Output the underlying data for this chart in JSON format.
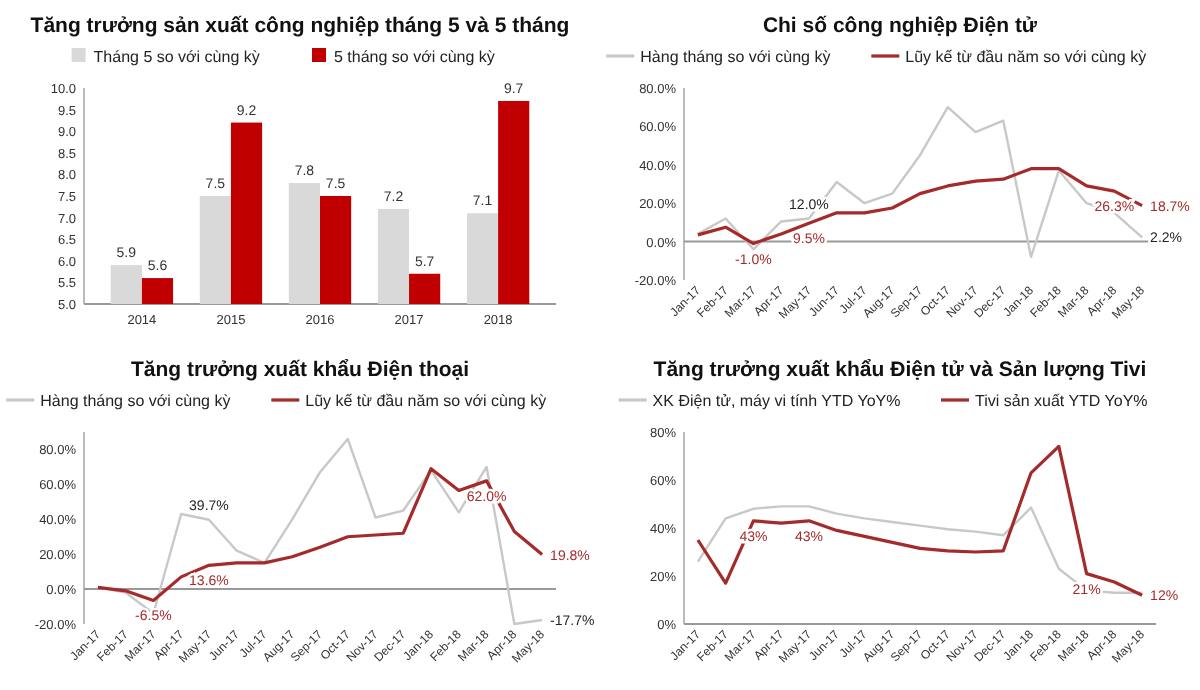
{
  "chart_data": [
    {
      "type": "bar",
      "title": "Tăng trưởng sản xuất công nghiệp tháng 5 và 5 tháng",
      "categories": [
        "2014",
        "2015",
        "2016",
        "2017",
        "2018"
      ],
      "series": [
        {
          "name": "Tháng 5 so với cùng kỳ",
          "color": "#d9d9d9",
          "values": [
            5.9,
            7.5,
            7.8,
            7.2,
            7.1
          ]
        },
        {
          "name": "5 tháng so với cùng kỳ",
          "color": "#c00000",
          "values": [
            5.6,
            9.2,
            7.5,
            5.7,
            9.7
          ]
        }
      ],
      "ylim": [
        5,
        10
      ],
      "yticks": [
        {
          "value": 5,
          "label": "5.0"
        },
        5.5,
        {
          "value": 6,
          "label": "6.0"
        },
        6.5,
        {
          "value": 7,
          "label": "7.0"
        },
        7.5,
        {
          "value": 8,
          "label": "8.0"
        },
        8.5,
        {
          "value": 9,
          "label": "9.0"
        },
        9.5,
        {
          "value": 10,
          "label": "10.0"
        }
      ],
      "data_labels": true,
      "legend": "top"
    },
    {
      "type": "line",
      "title": "Chi số công nghiệp Điện tử",
      "categories": [
        "Jan-17",
        "Feb-17",
        "Mar-17",
        "Apr-17",
        "May-17",
        "Jun-17",
        "Jul-17",
        "Aug-17",
        "Sep-17",
        "Oct-17",
        "Nov-17",
        "Dec-17",
        "Jan-18",
        "Feb-18",
        "Mar-18",
        "Apr-18",
        "May-18"
      ],
      "series": [
        {
          "name": "Hàng tháng so với cùng kỳ",
          "color": "#c8c8c8",
          "values": [
            4,
            12,
            -4,
            10.5,
            12.0,
            31,
            20,
            25,
            45,
            70,
            57,
            63,
            -8,
            37,
            20,
            15,
            2.2
          ],
          "value_labels": [
            null,
            null,
            null,
            null,
            "12.0%",
            null,
            null,
            null,
            null,
            null,
            null,
            null,
            null,
            null,
            null,
            null,
            "2.2%"
          ]
        },
        {
          "name": "Lũy kế từ đầu năm so với cùng kỳ",
          "color": "#a52a2a",
          "values": [
            3.5,
            7.5,
            -1.0,
            4,
            9.5,
            15,
            15,
            17.5,
            25,
            29,
            31.5,
            32.5,
            38,
            38,
            29,
            26.3,
            18.7
          ],
          "value_labels": [
            null,
            null,
            "-1.0%",
            null,
            "9.5%",
            null,
            null,
            null,
            null,
            null,
            null,
            null,
            null,
            null,
            null,
            "26.3%",
            "18.7%"
          ]
        }
      ],
      "ylim": [
        -20,
        80
      ],
      "yticks": [
        {
          "value": -20,
          "label": "-20.0%"
        },
        {
          "value": 0,
          "label": "0.0%"
        },
        {
          "value": 20,
          "label": "20.0%"
        },
        {
          "value": 40,
          "label": "40.0%"
        },
        {
          "value": 60,
          "label": "60.0%"
        },
        {
          "value": 80,
          "label": "80.0%"
        }
      ],
      "legend": "top"
    },
    {
      "type": "line",
      "title": "Tăng trưởng xuất khẩu Điện thoại",
      "categories": [
        "Jan-17",
        "Feb-17",
        "Mar-17",
        "Apr-17",
        "May-17",
        "Jun-17",
        "Jul-17",
        "Aug-17",
        "Sep-17",
        "Oct-17",
        "Nov-17",
        "Dec-17",
        "Jan-18",
        "Feb-18",
        "Mar-18",
        "Apr-18",
        "May-18"
      ],
      "series": [
        {
          "name": "Hàng tháng so với cùng kỳ",
          "color": "#c8c8c8",
          "values": [
            1,
            -2,
            -14,
            43,
            39.7,
            22,
            15,
            40,
            67,
            86,
            41,
            45,
            68,
            44,
            70,
            -20,
            -17.7
          ],
          "value_labels": [
            null,
            null,
            null,
            null,
            "39.7%",
            null,
            null,
            null,
            null,
            null,
            null,
            null,
            null,
            null,
            null,
            null,
            "-17.7%"
          ]
        },
        {
          "name": "Lũy kế từ đầu năm so với cùng kỳ",
          "color": "#a52a2a",
          "values": [
            1,
            -1,
            -6.5,
            7,
            13.6,
            15,
            15,
            18.5,
            24,
            30,
            31,
            32,
            69,
            56.5,
            62.0,
            33,
            19.8
          ],
          "value_labels": [
            null,
            null,
            "-6.5%",
            null,
            "13.6%",
            null,
            null,
            null,
            null,
            null,
            null,
            null,
            null,
            null,
            "62.0%",
            null,
            "19.8%"
          ]
        }
      ],
      "ylim": [
        -20,
        90
      ],
      "yticks": [
        {
          "value": -20,
          "label": "-20.0%"
        },
        {
          "value": 0,
          "label": "0.0%"
        },
        {
          "value": 20,
          "label": "20.0%"
        },
        {
          "value": 40,
          "label": "40.0%"
        },
        {
          "value": 60,
          "label": "60.0%"
        },
        {
          "value": 80,
          "label": "80.0%"
        }
      ],
      "legend": "top"
    },
    {
      "type": "line",
      "title": "Tăng trưởng xuất khẩu Điện tử và Sản lượng Tivi",
      "categories": [
        "Jan-17",
        "Feb-17",
        "Mar-17",
        "Apr-17",
        "May-17",
        "Jun-17",
        "Jul-17",
        "Aug-17",
        "Sep-17",
        "Oct-17",
        "Nov-17",
        "Dec-17",
        "Jan-18",
        "Feb-18",
        "Mar-18",
        "Apr-18",
        "May-18"
      ],
      "series": [
        {
          "name": "XK Điện tử, máy vi tính YTD YoY%",
          "color": "#c8c8c8",
          "values": [
            26,
            44,
            48,
            49,
            49,
            46,
            44,
            42.5,
            41,
            39.5,
            38.5,
            37,
            48.5,
            23,
            14,
            13,
            13
          ]
        },
        {
          "name": "Tivi sản xuất YTD YoY%",
          "color": "#a52a2a",
          "values": [
            35,
            17,
            43,
            42,
            43,
            39,
            36.5,
            34,
            31.5,
            30.5,
            30,
            30.5,
            63,
            74,
            21,
            17.5,
            12
          ],
          "value_labels": [
            null,
            null,
            "43%",
            null,
            "43%",
            null,
            null,
            null,
            null,
            null,
            null,
            null,
            null,
            null,
            "21%",
            null,
            "12%"
          ]
        }
      ],
      "ylim": [
        0,
        80
      ],
      "yticks": [
        {
          "value": 0,
          "label": "0%"
        },
        {
          "value": 20,
          "label": "20%"
        },
        {
          "value": 40,
          "label": "40%"
        },
        {
          "value": 60,
          "label": "60%"
        },
        {
          "value": 80,
          "label": "80%"
        }
      ],
      "legend": "top"
    }
  ]
}
